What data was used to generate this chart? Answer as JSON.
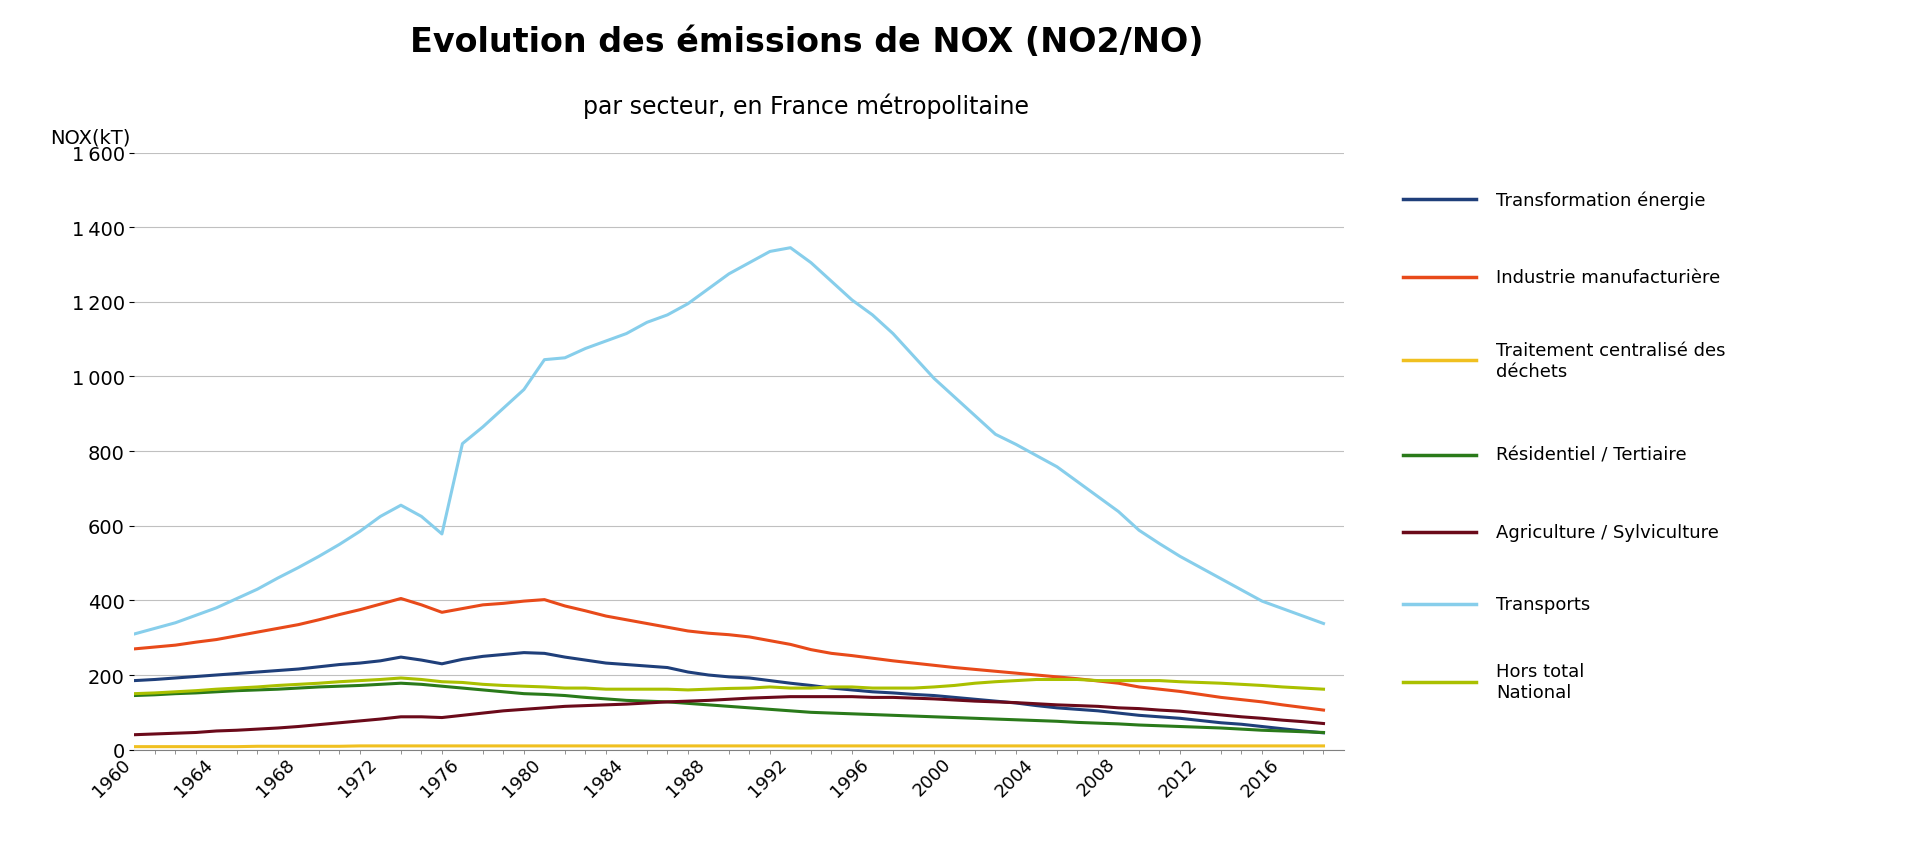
{
  "title_line1": "Evolution des émissions de NOX (NO2/NO)",
  "title_line2": "par secteur, en France métropolitaine",
  "ylabel": "NOX(kT)",
  "years": [
    1960,
    1961,
    1962,
    1963,
    1964,
    1965,
    1966,
    1967,
    1968,
    1969,
    1970,
    1971,
    1972,
    1973,
    1974,
    1975,
    1976,
    1977,
    1978,
    1979,
    1980,
    1981,
    1982,
    1983,
    1984,
    1985,
    1986,
    1987,
    1988,
    1989,
    1990,
    1991,
    1992,
    1993,
    1994,
    1995,
    1996,
    1997,
    1998,
    1999,
    2000,
    2001,
    2002,
    2003,
    2004,
    2005,
    2006,
    2007,
    2008,
    2009,
    2010,
    2011,
    2012,
    2013,
    2014,
    2015,
    2016,
    2017,
    2018
  ],
  "series": {
    "Transformation énergie": [
      185,
      188,
      192,
      196,
      200,
      204,
      208,
      212,
      216,
      222,
      228,
      232,
      238,
      248,
      240,
      230,
      242,
      250,
      255,
      260,
      258,
      248,
      240,
      232,
      228,
      224,
      220,
      208,
      200,
      195,
      192,
      185,
      178,
      172,
      165,
      160,
      155,
      152,
      148,
      145,
      140,
      135,
      130,
      125,
      118,
      112,
      108,
      104,
      98,
      92,
      88,
      84,
      78,
      72,
      68,
      62,
      56,
      50,
      45
    ],
    "Industrie manufacturière": [
      270,
      275,
      280,
      288,
      295,
      305,
      315,
      325,
      335,
      348,
      362,
      375,
      390,
      405,
      388,
      368,
      378,
      388,
      392,
      398,
      402,
      385,
      372,
      358,
      348,
      338,
      328,
      318,
      312,
      308,
      302,
      292,
      282,
      268,
      258,
      252,
      245,
      238,
      232,
      226,
      220,
      215,
      210,
      205,
      200,
      195,
      190,
      184,
      178,
      168,
      162,
      156,
      148,
      140,
      134,
      128,
      120,
      113,
      106
    ],
    "Traitement centralisé des déchets": [
      8,
      8,
      8,
      8,
      8,
      8,
      9,
      9,
      9,
      9,
      9,
      10,
      10,
      10,
      10,
      10,
      10,
      10,
      10,
      10,
      10,
      10,
      10,
      10,
      10,
      10,
      10,
      10,
      10,
      10,
      10,
      10,
      10,
      10,
      10,
      10,
      10,
      10,
      10,
      10,
      10,
      10,
      10,
      10,
      10,
      10,
      10,
      10,
      10,
      10,
      10,
      10,
      10,
      10,
      10,
      10,
      10,
      10,
      10
    ],
    "Résidentiel / Tertiaire": [
      145,
      147,
      150,
      152,
      155,
      158,
      160,
      162,
      165,
      168,
      170,
      172,
      175,
      178,
      175,
      170,
      165,
      160,
      155,
      150,
      148,
      145,
      140,
      136,
      132,
      130,
      128,
      124,
      120,
      116,
      112,
      108,
      104,
      100,
      98,
      96,
      94,
      92,
      90,
      88,
      86,
      84,
      82,
      80,
      78,
      76,
      73,
      71,
      69,
      66,
      64,
      62,
      60,
      58,
      55,
      52,
      50,
      48,
      46
    ],
    "Agriculture / Sylviculture": [
      40,
      42,
      44,
      46,
      50,
      52,
      55,
      58,
      62,
      67,
      72,
      77,
      82,
      88,
      88,
      86,
      92,
      98,
      104,
      108,
      112,
      116,
      118,
      120,
      122,
      125,
      128,
      130,
      132,
      135,
      138,
      140,
      142,
      142,
      142,
      142,
      140,
      140,
      138,
      136,
      133,
      130,
      128,
      126,
      123,
      120,
      118,
      116,
      112,
      110,
      106,
      103,
      98,
      93,
      88,
      84,
      79,
      75,
      70
    ],
    "Transports": [
      310,
      325,
      340,
      360,
      380,
      405,
      430,
      460,
      488,
      518,
      550,
      585,
      625,
      655,
      625,
      578,
      820,
      865,
      915,
      965,
      1045,
      1050,
      1075,
      1095,
      1115,
      1145,
      1165,
      1195,
      1235,
      1275,
      1305,
      1335,
      1345,
      1305,
      1255,
      1205,
      1165,
      1115,
      1055,
      995,
      945,
      895,
      845,
      818,
      788,
      758,
      718,
      678,
      638,
      588,
      552,
      518,
      488,
      458,
      428,
      398,
      378,
      358,
      338
    ],
    "Hors total National": [
      150,
      152,
      155,
      158,
      162,
      165,
      168,
      172,
      175,
      178,
      182,
      185,
      188,
      192,
      188,
      182,
      180,
      175,
      172,
      170,
      168,
      165,
      165,
      162,
      162,
      162,
      162,
      160,
      162,
      164,
      165,
      168,
      165,
      165,
      168,
      168,
      165,
      165,
      165,
      168,
      172,
      178,
      182,
      185,
      188,
      188,
      188,
      185,
      185,
      185,
      185,
      182,
      180,
      178,
      175,
      172,
      168,
      165,
      162
    ]
  },
  "colors": {
    "Transformation énergie": "#1f3f7a",
    "Industrie manufacturière": "#e84a1a",
    "Traitement centralisé des déchets": "#f0c020",
    "Résidentiel / Tertiaire": "#2a7a1a",
    "Agriculture / Sylviculture": "#6b0a1a",
    "Transports": "#87ceeb",
    "Hors total National": "#aac000"
  },
  "ylim": [
    0,
    1600
  ],
  "yticks": [
    0,
    200,
    400,
    600,
    800,
    1000,
    1200,
    1400,
    1600
  ],
  "xtick_labels": [
    "1960",
    "1964",
    "1968",
    "1972",
    "1976",
    "1980",
    "1984",
    "1988",
    "1992",
    "1996",
    "2000",
    "2004",
    "2008",
    "2012",
    "2016"
  ],
  "xtick_years": [
    1960,
    1964,
    1968,
    1972,
    1976,
    1980,
    1984,
    1988,
    1992,
    1996,
    2000,
    2004,
    2008,
    2012,
    2016
  ],
  "background_color": "#ffffff",
  "grid_color": "#c0c0c0",
  "legend_entries": [
    "Transformation énergie",
    "Industrie manufacturière",
    "Traitement centralisé des\ndéchets",
    "Résidentiel / Tertiaire",
    "Agriculture / Sylviculture",
    "Transports",
    "Hors total\nNational"
  ],
  "legend_keys": [
    "Transformation énergie",
    "Industrie manufacturière",
    "Traitement centralisé des déchets",
    "Résidentiel / Tertiaire",
    "Agriculture / Sylviculture",
    "Transports",
    "Hors total National"
  ]
}
